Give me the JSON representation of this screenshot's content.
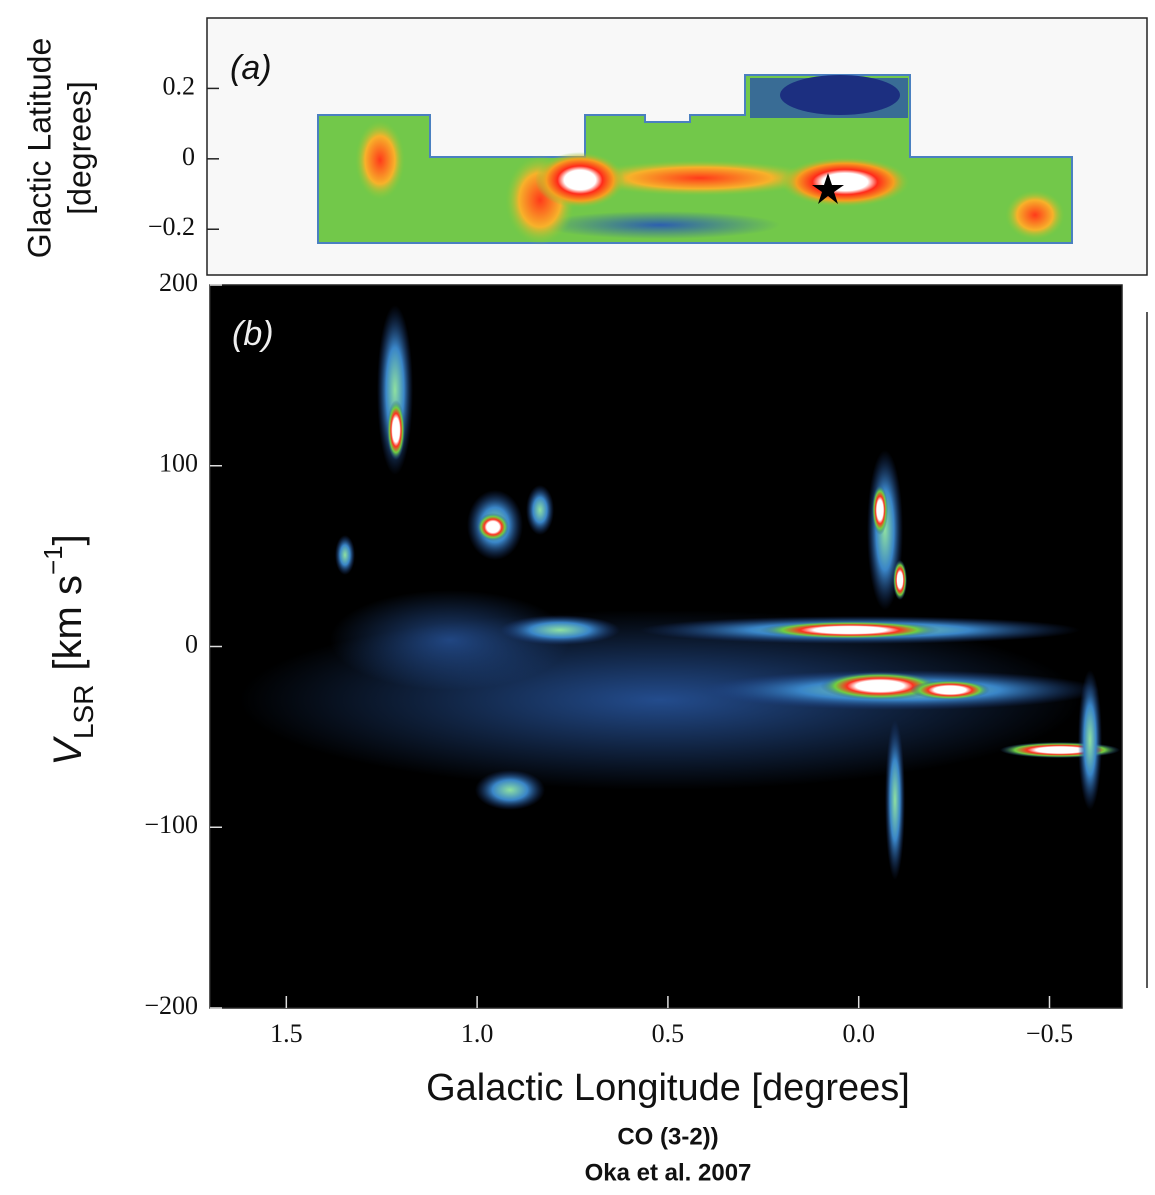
{
  "chart_data": [
    {
      "type": "image",
      "panel_label": "(a)",
      "ylabel": [
        "Glactic Latitude",
        "[degrees]"
      ],
      "ylim": [
        -0.33,
        0.4
      ],
      "yticks": [
        {
          "value": 0.2,
          "label": "0.2"
        },
        0,
        {
          "value": -0.2,
          "label": "−0.2"
        }
      ]
    },
    {
      "type": "image",
      "panel_label": "(b)",
      "ylabel": {
        "main": "V",
        "sub": "LSR",
        "unit": "[km s",
        "sup": "−1",
        "close": "]"
      },
      "xlabel": "Galactic Longitude  [degrees]",
      "xlim": [
        1.7,
        -0.69
      ],
      "ylim": [
        -200,
        200
      ],
      "xticks": [
        1.5,
        {
          "value": 1.0,
          "label": "1.0"
        },
        0.5,
        {
          "value": 0.0,
          "label": "0.0"
        },
        {
          "value": -0.5,
          "label": "−0.5"
        }
      ],
      "yticks": [
        200,
        100,
        0,
        {
          "value": -100,
          "label": "−100"
        },
        {
          "value": -200,
          "label": "−200"
        }
      ]
    }
  ],
  "caption": {
    "line1": "CO (3-2))",
    "line2": "Oka et al. 2007"
  }
}
